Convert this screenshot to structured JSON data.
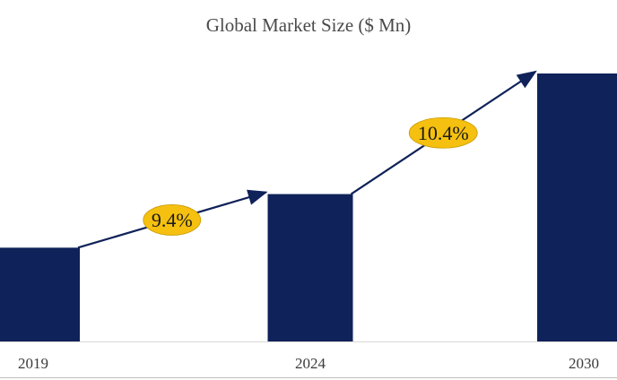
{
  "chart_data": {
    "type": "bar",
    "title": "Global Market Size ($ Mn)",
    "xlabel": "",
    "ylabel": "",
    "categories": [
      "2019",
      "2024",
      "2030"
    ],
    "values": [
      105,
      165,
      300
    ],
    "ylim": [
      0,
      330
    ],
    "grid": false,
    "legend": "none",
    "bar_color": "#0f2259",
    "annotations": [
      {
        "from": "2019",
        "to": "2024",
        "label": "9.4%"
      },
      {
        "from": "2024",
        "to": "2030",
        "label": "10.4%"
      }
    ],
    "annotation_color": "#f5c00f",
    "arrow_color": "#0f2259"
  }
}
